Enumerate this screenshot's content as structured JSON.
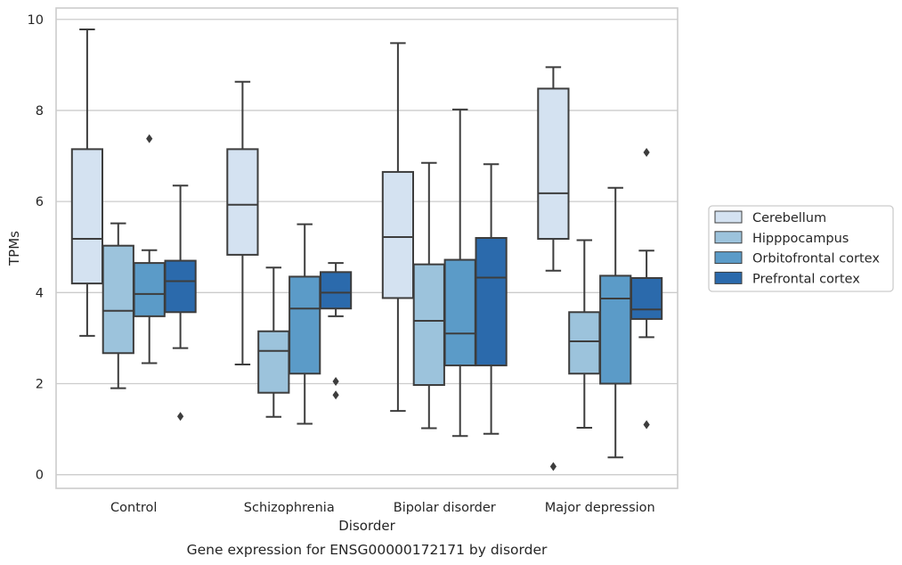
{
  "chart_data": {
    "type": "box",
    "caption": "Gene expression for ENSG00000172171 by disorder",
    "xlabel": "Disorder",
    "ylabel": "TPMs",
    "ylim": [
      -0.3,
      10.25
    ],
    "yticks": [
      0,
      2,
      4,
      6,
      8,
      10
    ],
    "grid": "horizontal",
    "legend_position": "right",
    "categories": [
      "Control",
      "Schizophrenia",
      "Bipolar disorder",
      "Major depression"
    ],
    "series": [
      {
        "name": "Cerebellum",
        "color": "#d4e2f1",
        "boxes": [
          {
            "whisker_low": 3.05,
            "q1": 4.2,
            "median": 5.18,
            "q3": 7.15,
            "whisker_high": 9.78,
            "outliers": []
          },
          {
            "whisker_low": 2.42,
            "q1": 4.83,
            "median": 5.93,
            "q3": 7.15,
            "whisker_high": 8.63,
            "outliers": []
          },
          {
            "whisker_low": 1.4,
            "q1": 3.88,
            "median": 5.22,
            "q3": 6.65,
            "whisker_high": 9.48,
            "outliers": []
          },
          {
            "whisker_low": 4.48,
            "q1": 5.18,
            "median": 6.18,
            "q3": 8.48,
            "whisker_high": 8.95,
            "outliers": [
              0.18
            ]
          }
        ]
      },
      {
        "name": "Hipppocampus",
        "color": "#9cc3dc",
        "boxes": [
          {
            "whisker_low": 1.9,
            "q1": 2.67,
            "median": 3.6,
            "q3": 5.03,
            "whisker_high": 5.52,
            "outliers": []
          },
          {
            "whisker_low": 1.27,
            "q1": 1.8,
            "median": 2.72,
            "q3": 3.15,
            "whisker_high": 4.55,
            "outliers": []
          },
          {
            "whisker_low": 1.02,
            "q1": 1.97,
            "median": 3.38,
            "q3": 4.62,
            "whisker_high": 6.85,
            "outliers": []
          },
          {
            "whisker_low": 1.03,
            "q1": 2.22,
            "median": 2.93,
            "q3": 3.57,
            "whisker_high": 5.15,
            "outliers": []
          }
        ]
      },
      {
        "name": "Orbitofrontal cortex",
        "color": "#5b9bc8",
        "boxes": [
          {
            "whisker_low": 2.45,
            "q1": 3.48,
            "median": 3.97,
            "q3": 4.65,
            "whisker_high": 4.93,
            "outliers": [
              7.38
            ]
          },
          {
            "whisker_low": 1.12,
            "q1": 2.22,
            "median": 3.65,
            "q3": 4.35,
            "whisker_high": 5.5,
            "outliers": []
          },
          {
            "whisker_low": 0.85,
            "q1": 2.4,
            "median": 3.1,
            "q3": 4.72,
            "whisker_high": 8.02,
            "outliers": []
          },
          {
            "whisker_low": 0.38,
            "q1": 2.0,
            "median": 3.87,
            "q3": 4.37,
            "whisker_high": 6.3,
            "outliers": []
          }
        ]
      },
      {
        "name": "Prefrontal cortex",
        "color": "#2b6aac",
        "boxes": [
          {
            "whisker_low": 2.78,
            "q1": 3.57,
            "median": 4.25,
            "q3": 4.7,
            "whisker_high": 6.35,
            "outliers": [
              1.28
            ]
          },
          {
            "whisker_low": 3.48,
            "q1": 3.65,
            "median": 4.0,
            "q3": 4.45,
            "whisker_high": 4.65,
            "outliers": [
              2.05,
              1.75
            ]
          },
          {
            "whisker_low": 0.9,
            "q1": 2.4,
            "median": 4.33,
            "q3": 5.2,
            "whisker_high": 6.82,
            "outliers": []
          },
          {
            "whisker_low": 3.02,
            "q1": 3.42,
            "median": 3.63,
            "q3": 4.32,
            "whisker_high": 4.92,
            "outliers": [
              7.08,
              1.1
            ]
          }
        ]
      }
    ]
  }
}
